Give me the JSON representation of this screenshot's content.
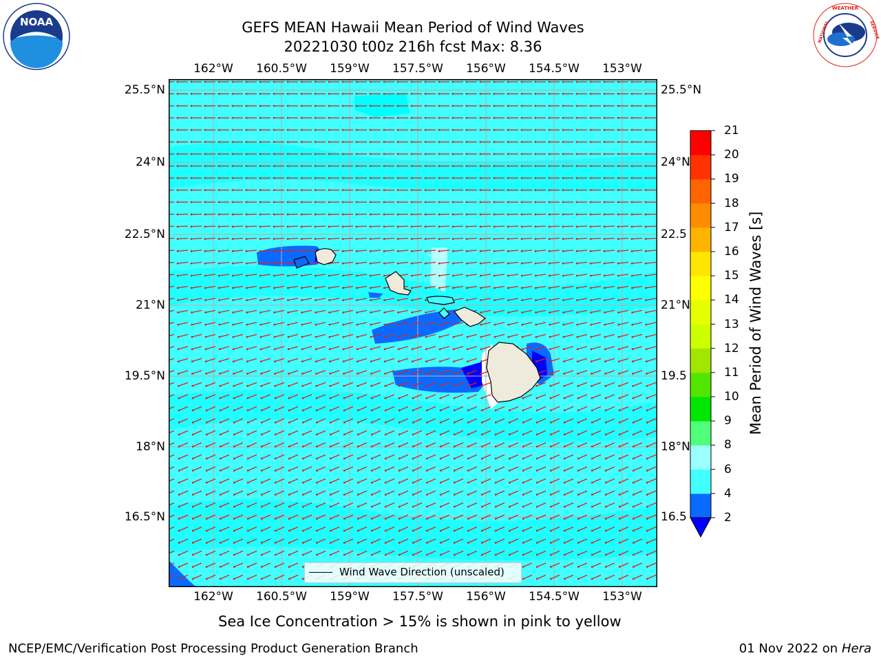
{
  "header": {
    "title_line1": "GEFS MEAN Hawaii Mean Period of Wind Waves",
    "title_line2": "20221030 t00z 216h fcst   Max: 8.36"
  },
  "logos": {
    "noaa_text": "NOAA",
    "noaa_ring_text": "NATIONAL OCEANIC AND ATMOSPHERIC ADMINISTRATION · U.S. DEPARTMENT OF COMMERCE",
    "nws_ring_text": "NATIONAL WEATHER SERVICE"
  },
  "map": {
    "lon_labels": [
      "162°W",
      "160.5°W",
      "159°W",
      "157.5°W",
      "156°W",
      "154.5°W",
      "153°W"
    ],
    "lat_labels_left": [
      "25.5°N",
      "24°N",
      "22.5°N",
      "21°N",
      "19.5°N",
      "18°N",
      "16.5°N"
    ],
    "lat_labels_right": [
      "25.5°N",
      "24°N",
      "22.5",
      "21°N",
      "19.5",
      "18°N",
      "16.5"
    ],
    "legend_label": "Wind Wave Direction (unscaled)",
    "ocean_color": "#41ffff",
    "land_color": "#efebdc",
    "vector_color": "#e0201a"
  },
  "colorbar": {
    "title": "Mean Period of Wind Waves [s]",
    "levels": [
      "2",
      "4",
      "6",
      "8",
      "9",
      "10",
      "11",
      "12",
      "13",
      "14",
      "15",
      "16",
      "17",
      "18",
      "19",
      "20",
      "21"
    ],
    "colors": [
      "#0a6aff",
      "#00ffff",
      "#41ffff",
      "#9affff",
      "#50ff7a",
      "#00e600",
      "#50e600",
      "#a0e600",
      "#ccff00",
      "#e6ff00",
      "#ffff00",
      "#ffe600",
      "#ffb400",
      "#ff8c00",
      "#ff6400",
      "#ff3200",
      "#ff0000"
    ],
    "extend_color": "#0000ff"
  },
  "notes": {
    "sea_ice": "Sea Ice Concentration > 15% is shown in pink to yellow"
  },
  "footer": {
    "left": "NCEP/EMC/Verification Post Processing Product Generation Branch",
    "date": "01 Nov 2022 on",
    "machine": "Hera"
  }
}
